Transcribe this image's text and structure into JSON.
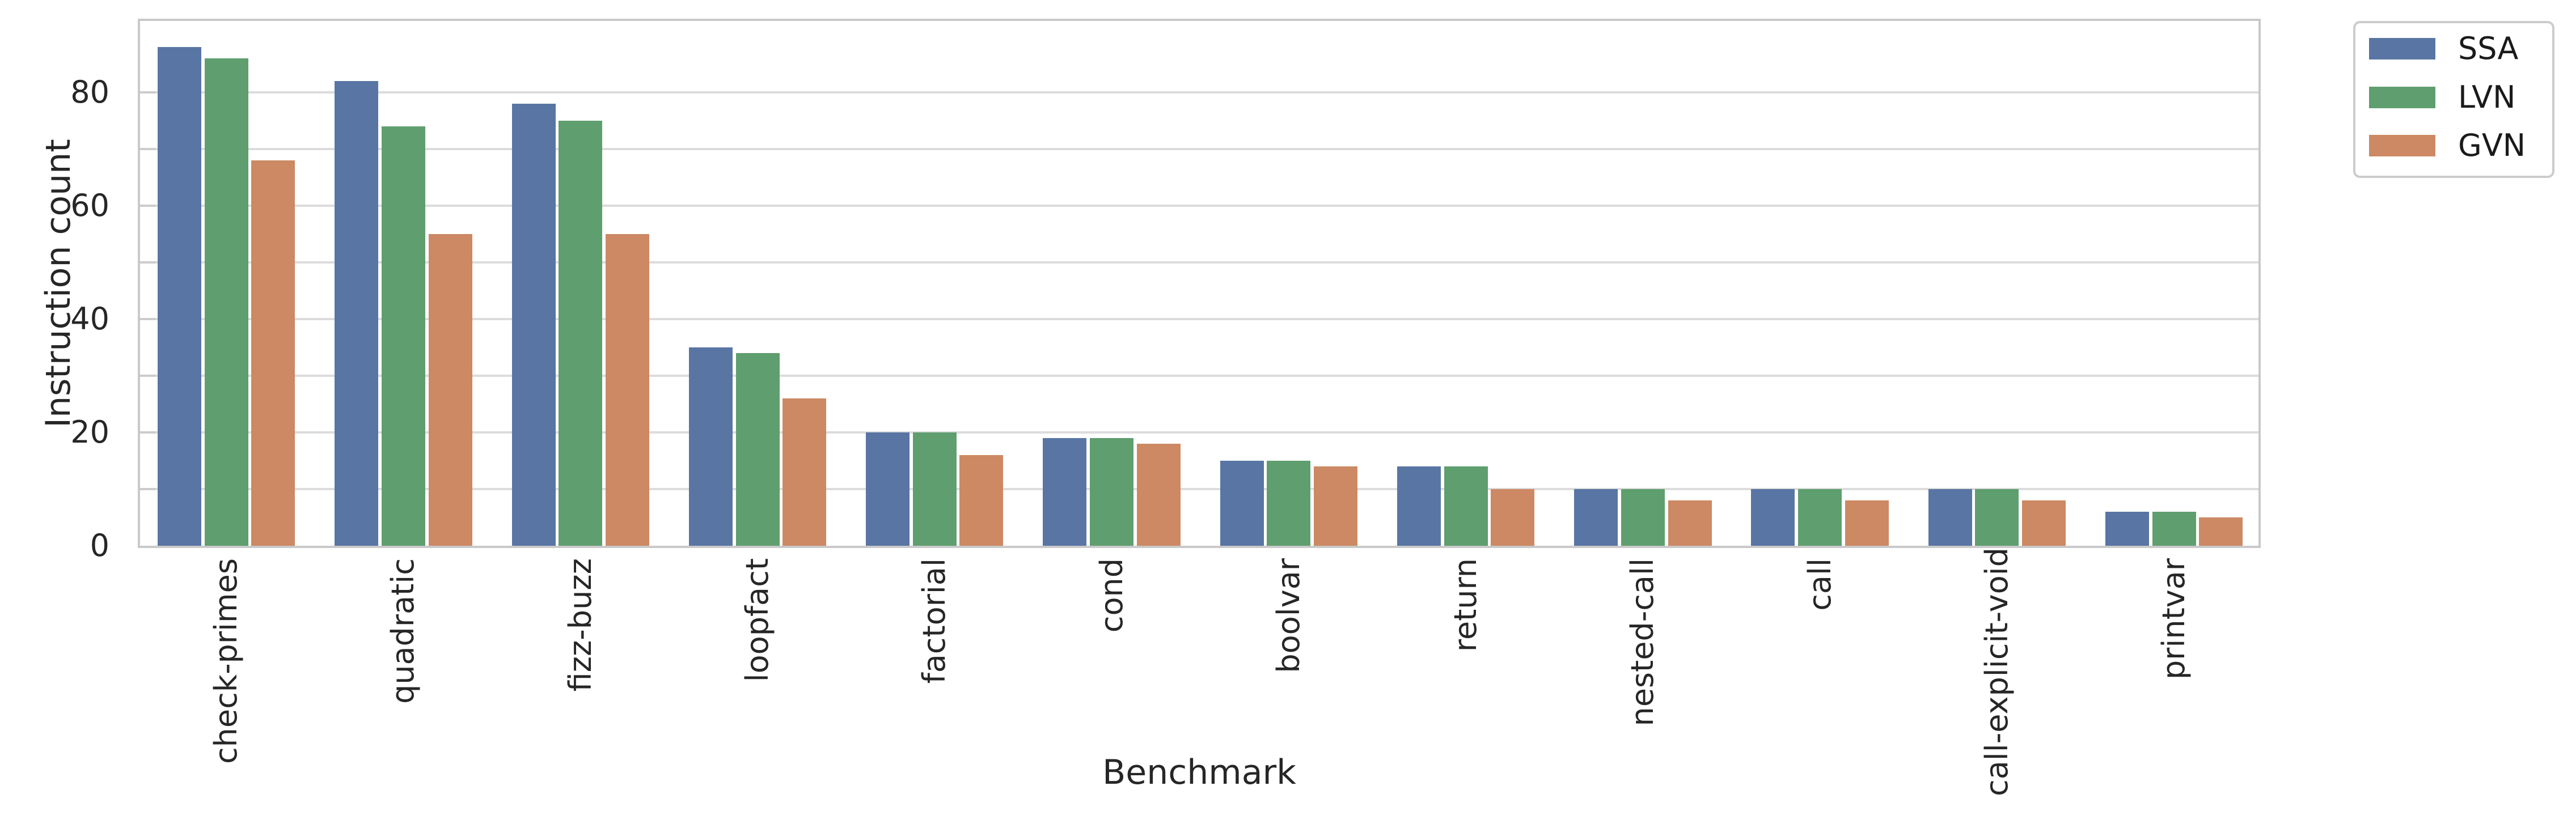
{
  "chart_data": {
    "type": "bar",
    "title": "",
    "xlabel": "Benchmark",
    "ylabel": "Instruction count",
    "categories": [
      "check-primes",
      "quadratic",
      "fizz-buzz",
      "loopfact",
      "factorial",
      "cond",
      "boolvar",
      "return",
      "nested-call",
      "call",
      "call-explicit-void",
      "printvar"
    ],
    "series": [
      {
        "name": "SSA",
        "color": "#5875A4",
        "values": [
          88,
          82,
          78,
          35,
          20,
          19,
          15,
          14,
          10,
          10,
          10,
          6
        ]
      },
      {
        "name": "LVN",
        "color": "#5F9E6E",
        "values": [
          86,
          74,
          75,
          34,
          20,
          19,
          15,
          14,
          10,
          10,
          10,
          6
        ]
      },
      {
        "name": "GVN",
        "color": "#CC8963",
        "values": [
          68,
          55,
          55,
          26,
          16,
          18,
          14,
          10,
          8,
          8,
          8,
          5
        ]
      }
    ],
    "ylim": [
      0,
      92.6
    ],
    "ytick_labels": [
      "0",
      "20",
      "40",
      "60",
      "80"
    ],
    "yticks_labeled_values": [
      0,
      20,
      40,
      60,
      80
    ],
    "gridline_values": [
      10,
      20,
      30,
      40,
      50,
      60,
      70,
      80
    ],
    "grid": "on",
    "legend_position": "outside-upper-right"
  },
  "colors": {
    "background": "#ffffff",
    "grid": "#dcdcdc",
    "spine": "#c9c9c9",
    "tick": "#cccccc",
    "text": "#262626"
  }
}
